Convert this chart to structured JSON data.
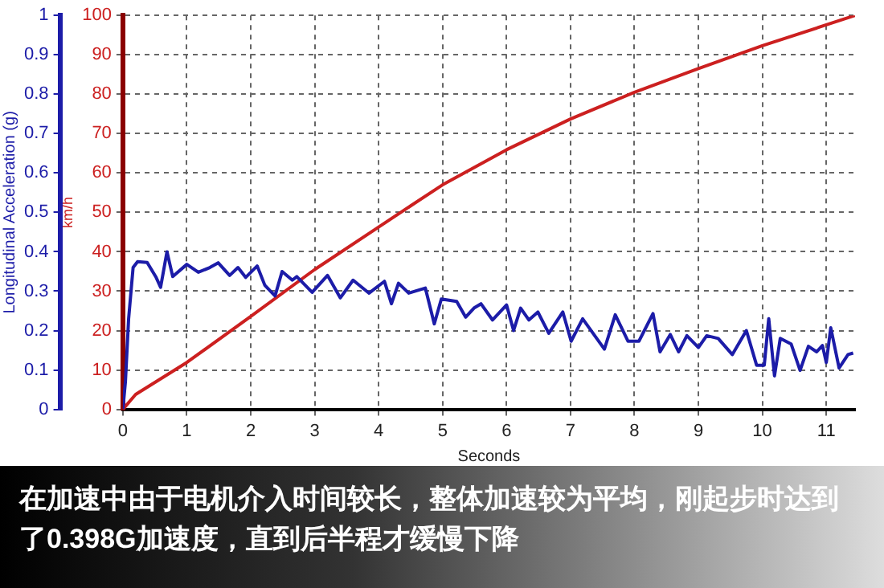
{
  "chart_data": {
    "type": "line",
    "xlabel": "Seconds",
    "ylabel": "Longitudinal Acceleration (g)",
    "y2label": "km/h",
    "annotations": [
      "在加速中由于电机介入时间较长，整体加速较为平均，刚起步时达到了0.398G加速度，直到后半程才缓慢下降"
    ],
    "xlim": [
      0,
      11.45
    ],
    "xticks": [
      0,
      1,
      2,
      3,
      4,
      5,
      6,
      7,
      8,
      9,
      10,
      11
    ],
    "ylim": [
      0,
      1
    ],
    "yticks": [
      0,
      0.1,
      0.2,
      0.3,
      0.4,
      0.5,
      0.6,
      0.7,
      0.8,
      0.9,
      1
    ],
    "y2lim": [
      0,
      100
    ],
    "y2ticks": [
      0,
      10,
      20,
      30,
      40,
      50,
      60,
      70,
      80,
      90,
      100
    ],
    "grid": true,
    "legend": false,
    "marker": "none",
    "line_style": "solid",
    "series": [
      {
        "color": "#1c1ca8",
        "x": [
          0,
          0.04,
          0.09,
          0.16,
          0.23,
          0.38,
          0.52,
          0.59,
          0.69,
          0.78,
          1.0,
          1.18,
          1.36,
          1.49,
          1.67,
          1.8,
          1.92,
          2.1,
          2.22,
          2.38,
          2.49,
          2.65,
          2.72,
          2.96,
          3.2,
          3.4,
          3.6,
          3.85,
          4.09,
          4.2,
          4.31,
          4.47,
          4.73,
          4.87,
          4.98,
          5.22,
          5.36,
          5.49,
          5.6,
          5.78,
          6.0,
          6.11,
          6.22,
          6.35,
          6.49,
          6.66,
          6.88,
          7.01,
          7.19,
          7.53,
          7.7,
          7.9,
          8.07,
          8.29,
          8.4,
          8.56,
          8.69,
          8.82,
          9.0,
          9.13,
          9.31,
          9.53,
          9.75,
          9.91,
          10.03,
          10.1,
          10.19,
          10.28,
          10.45,
          10.59,
          10.72,
          10.85,
          10.94,
          11.0,
          11.07,
          11.2,
          11.34,
          11.42
        ],
        "values": [
          0,
          0.07,
          0.23,
          0.36,
          0.375,
          0.373,
          0.335,
          0.31,
          0.4,
          0.337,
          0.368,
          0.348,
          0.36,
          0.372,
          0.34,
          0.36,
          0.335,
          0.364,
          0.315,
          0.288,
          0.35,
          0.328,
          0.337,
          0.297,
          0.34,
          0.283,
          0.328,
          0.295,
          0.325,
          0.268,
          0.32,
          0.295,
          0.308,
          0.217,
          0.28,
          0.274,
          0.234,
          0.257,
          0.268,
          0.227,
          0.265,
          0.2,
          0.257,
          0.227,
          0.247,
          0.193,
          0.247,
          0.173,
          0.23,
          0.153,
          0.24,
          0.173,
          0.173,
          0.243,
          0.146,
          0.19,
          0.146,
          0.187,
          0.157,
          0.187,
          0.18,
          0.139,
          0.2,
          0.112,
          0.112,
          0.23,
          0.085,
          0.18,
          0.166,
          0.099,
          0.16,
          0.146,
          0.162,
          0.119,
          0.207,
          0.105,
          0.139,
          0.143
        ]
      },
      {
        "color": "#cc2020",
        "axis": "y2",
        "x": [
          0,
          0.2,
          1,
          2,
          3,
          4,
          5,
          6,
          7,
          8,
          9,
          10,
          11,
          11.45
        ],
        "values": [
          0,
          3.8,
          11.9,
          23.6,
          35.5,
          46.3,
          57,
          65.9,
          73.7,
          80.5,
          86.5,
          92.3,
          97.6,
          100
        ]
      }
    ]
  }
}
